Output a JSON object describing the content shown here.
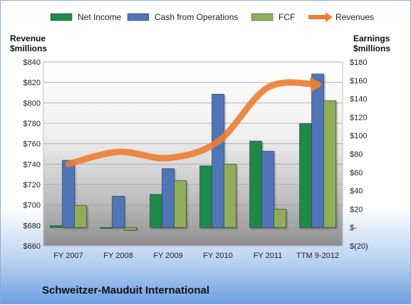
{
  "chart_data": {
    "type": "bar",
    "categories": [
      "FY 2007",
      "FY 2008",
      "FY 2009",
      "FY 2010",
      "FY 2011",
      "TTM 9-2012"
    ],
    "series": [
      {
        "name": "Net Income",
        "axis": "right",
        "color": "#1e8a4a",
        "values": [
          2,
          -1,
          36,
          67,
          94,
          113
        ]
      },
      {
        "name": "Cash from Operations",
        "axis": "right",
        "color": "#4f74b8",
        "values": [
          73,
          34,
          64,
          145,
          83,
          167
        ]
      },
      {
        "name": "FCF",
        "axis": "right",
        "color": "#8fae54",
        "values": [
          24,
          -3,
          51,
          69,
          20,
          138
        ]
      },
      {
        "name": "Revenues",
        "axis": "left",
        "type": "line",
        "color": "#ed7d31",
        "values": [
          740,
          752,
          746,
          762,
          815,
          818
        ]
      }
    ],
    "y_left": {
      "label": "Revenue\n$millions",
      "ticks": [
        "$840",
        "$820",
        "$800",
        "$780",
        "$760",
        "$740",
        "$720",
        "$700",
        "$680",
        "$660"
      ],
      "range": [
        660,
        840
      ]
    },
    "y_right": {
      "label": "Earnings\n$millions",
      "ticks": [
        "$180",
        "$160",
        "$140",
        "$120",
        "$100",
        "$80",
        "$60",
        "$40",
        "$20",
        "$-",
        "$(20)"
      ],
      "range": [
        -20,
        180
      ]
    },
    "legend_position": "top",
    "grid": true
  },
  "footer_title": "Schweitzer-Mauduit International"
}
